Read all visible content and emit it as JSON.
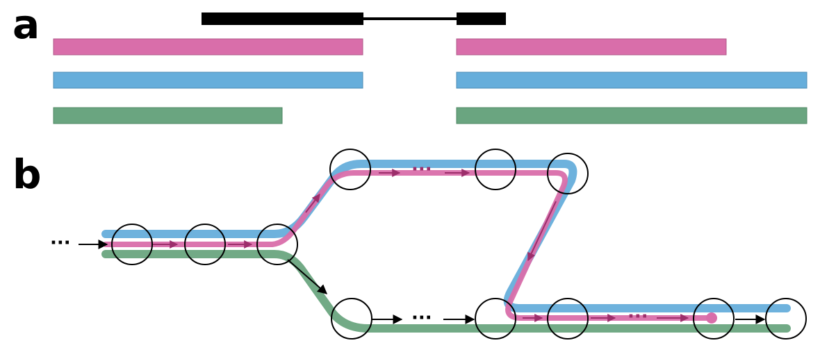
{
  "panels": {
    "a": "a",
    "b": "b"
  },
  "colors": {
    "gene": "#000000",
    "isoform_pink": "#D96EAA",
    "isoform_blue": "#66AEDB",
    "isoform_green": "#6AA580",
    "node_stroke": "#000000"
  },
  "ellipsis": "···"
}
